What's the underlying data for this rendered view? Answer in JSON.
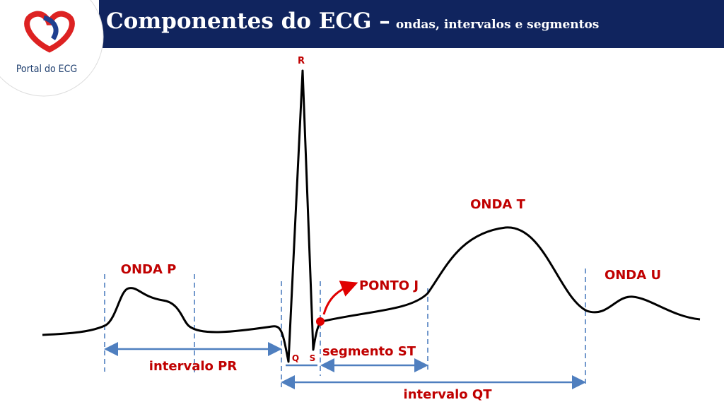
{
  "header": {
    "title": "Componentes do ECG –",
    "subtitle": "ondas, intervalos e segmentos"
  },
  "logo": {
    "text": "Portal do ECG"
  },
  "labels": {
    "r": "R",
    "q": "Q",
    "s": "S",
    "onda_p": "ONDA P",
    "onda_t": "ONDA T",
    "onda_u": "ONDA U",
    "ponto_j": "PONTO J"
  },
  "intervals": {
    "pr": "intervalo PR",
    "st": "segmento ST",
    "qt": "intervalo QT"
  }
}
